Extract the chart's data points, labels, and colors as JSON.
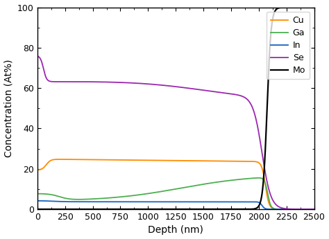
{
  "title": "",
  "xlabel": "Depth (nm)",
  "ylabel": "Concentration (At%)",
  "xlim": [
    0,
    2500
  ],
  "ylim": [
    0,
    100
  ],
  "xticks": [
    0,
    250,
    500,
    750,
    1000,
    1250,
    1500,
    1750,
    2000,
    2250,
    2500
  ],
  "yticks": [
    0,
    20,
    40,
    60,
    80,
    100
  ],
  "legend_labels": [
    "Cu",
    "Ga",
    "In",
    "Se",
    "Mo"
  ],
  "colors": {
    "Cu": "#FF8C00",
    "Ga": "#4CAF50",
    "In": "#1565C0",
    "Se": "#9C27B0",
    "Mo": "#000000"
  },
  "figsize": [
    4.74,
    3.45
  ],
  "dpi": 100
}
